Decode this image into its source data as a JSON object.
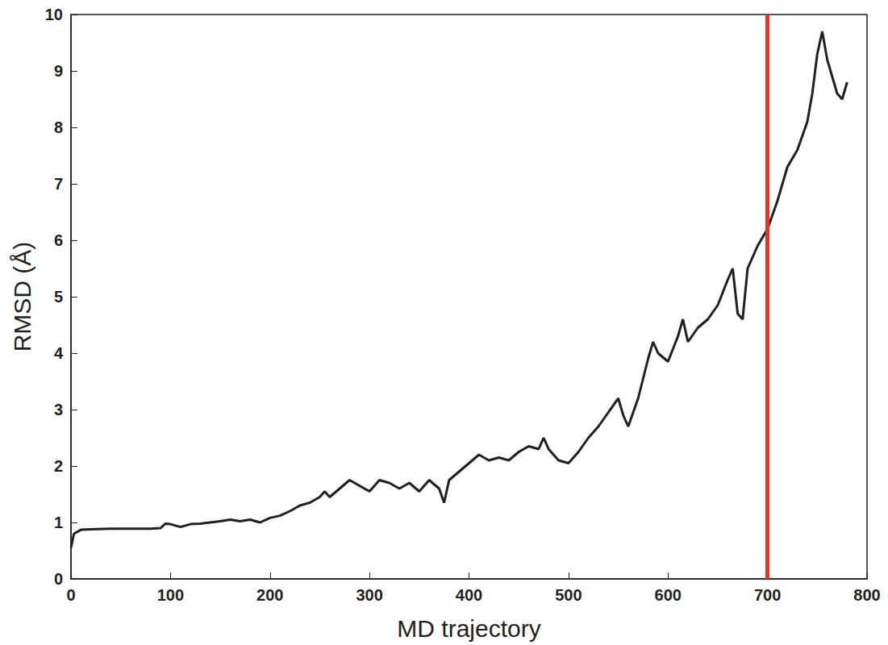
{
  "chart_data": {
    "type": "line",
    "x_label": "MD trajectory",
    "y_label": "RMSD (Å)",
    "xlim": [
      0,
      800
    ],
    "xticks": [
      0,
      100,
      200,
      300,
      400,
      500,
      600,
      700,
      800
    ],
    "ylim": [
      0,
      10
    ],
    "yticks": [
      0,
      1,
      2,
      3,
      4,
      5,
      6,
      7,
      8,
      9,
      10
    ],
    "grid": false,
    "color": "#231f20",
    "x": [
      0,
      3,
      10,
      20,
      40,
      60,
      80,
      90,
      95,
      100,
      110,
      120,
      130,
      140,
      150,
      160,
      170,
      180,
      190,
      200,
      210,
      220,
      230,
      240,
      250,
      255,
      260,
      270,
      280,
      290,
      300,
      310,
      320,
      330,
      340,
      350,
      360,
      370,
      375,
      380,
      390,
      400,
      410,
      420,
      430,
      440,
      450,
      460,
      470,
      475,
      480,
      490,
      500,
      510,
      520,
      530,
      540,
      550,
      555,
      560,
      570,
      580,
      585,
      590,
      600,
      610,
      615,
      620,
      630,
      640,
      650,
      660,
      665,
      670,
      675,
      680,
      690,
      700,
      710,
      720,
      730,
      740,
      745,
      750,
      755,
      760,
      765,
      770,
      775,
      780
    ],
    "values": [
      0.55,
      0.8,
      0.87,
      0.88,
      0.89,
      0.89,
      0.89,
      0.9,
      0.98,
      0.97,
      0.92,
      0.97,
      0.98,
      1.0,
      1.02,
      1.05,
      1.02,
      1.05,
      1.0,
      1.08,
      1.12,
      1.2,
      1.3,
      1.35,
      1.45,
      1.55,
      1.45,
      1.6,
      1.75,
      1.65,
      1.55,
      1.75,
      1.7,
      1.6,
      1.7,
      1.55,
      1.75,
      1.6,
      1.35,
      1.75,
      1.9,
      2.05,
      2.2,
      2.1,
      2.15,
      2.1,
      2.25,
      2.35,
      2.3,
      2.5,
      2.3,
      2.1,
      2.05,
      2.25,
      2.5,
      2.7,
      2.95,
      3.2,
      2.9,
      2.7,
      3.2,
      3.9,
      4.2,
      4.0,
      3.85,
      4.3,
      4.6,
      4.2,
      4.45,
      4.6,
      4.85,
      5.3,
      5.5,
      4.7,
      4.6,
      5.5,
      5.9,
      6.2,
      6.7,
      7.3,
      7.6,
      8.1,
      8.6,
      9.3,
      9.7,
      9.2,
      8.9,
      8.6,
      8.5,
      8.8
    ],
    "vertical_line": {
      "x": 700,
      "color": "#e8312a"
    }
  }
}
